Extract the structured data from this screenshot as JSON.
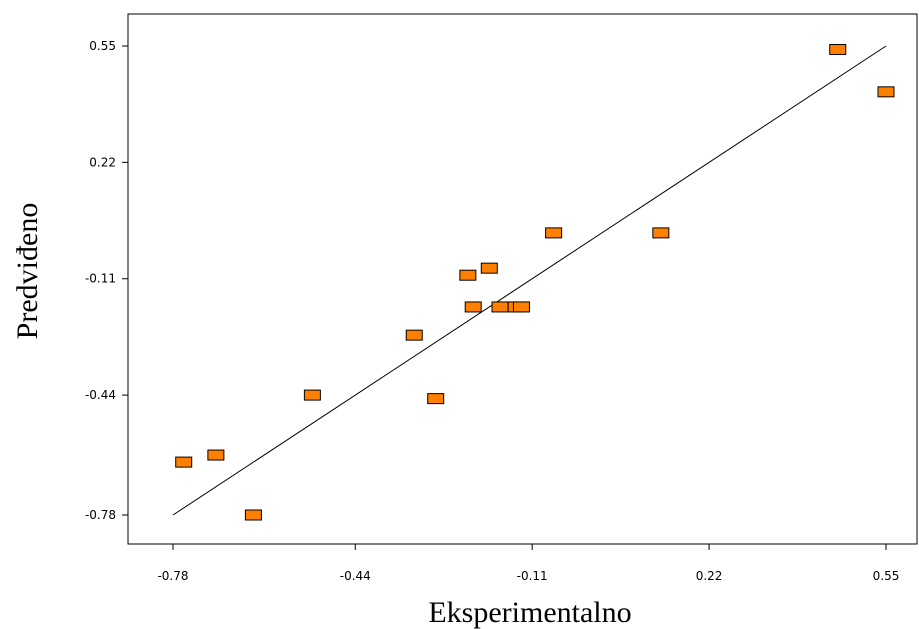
{
  "chart_data": {
    "type": "scatter",
    "title": "",
    "xlabel": "Eksperimentalno",
    "ylabel": "Predviđeno",
    "xlim": [
      -0.9,
      0.56
    ],
    "ylim": [
      -0.86,
      0.64
    ],
    "x_ticks": [
      -0.78,
      -0.44,
      -0.11,
      0.22,
      0.55
    ],
    "x_tick_labels": [
      "-0.78",
      "-0.44",
      "-0.11",
      "0.22",
      "0.55"
    ],
    "y_ticks": [
      0.55,
      0.22,
      -0.11,
      -0.44,
      -0.78
    ],
    "y_tick_labels": [
      "0.55",
      "0.22",
      "-0.11",
      "-0.44",
      "-0.78"
    ],
    "grid": false,
    "legend": "none",
    "marker_color": "#ff8000",
    "marker_edge_color": "#000000",
    "fit_line": {
      "x": [
        -0.78,
        0.55
      ],
      "y": [
        -0.78,
        0.55
      ]
    },
    "points": [
      {
        "x": -0.76,
        "y": -0.63
      },
      {
        "x": -0.7,
        "y": -0.61
      },
      {
        "x": -0.63,
        "y": -0.78
      },
      {
        "x": -0.52,
        "y": -0.44
      },
      {
        "x": -0.33,
        "y": -0.27
      },
      {
        "x": -0.29,
        "y": -0.45
      },
      {
        "x": -0.23,
        "y": -0.1
      },
      {
        "x": -0.22,
        "y": -0.19
      },
      {
        "x": -0.19,
        "y": -0.08
      },
      {
        "x": -0.17,
        "y": -0.19
      },
      {
        "x": -0.14,
        "y": -0.19
      },
      {
        "x": -0.13,
        "y": -0.19
      },
      {
        "x": -0.07,
        "y": 0.02
      },
      {
        "x": 0.13,
        "y": 0.02
      },
      {
        "x": 0.46,
        "y": 0.54
      },
      {
        "x": 0.55,
        "y": 0.42
      }
    ]
  }
}
